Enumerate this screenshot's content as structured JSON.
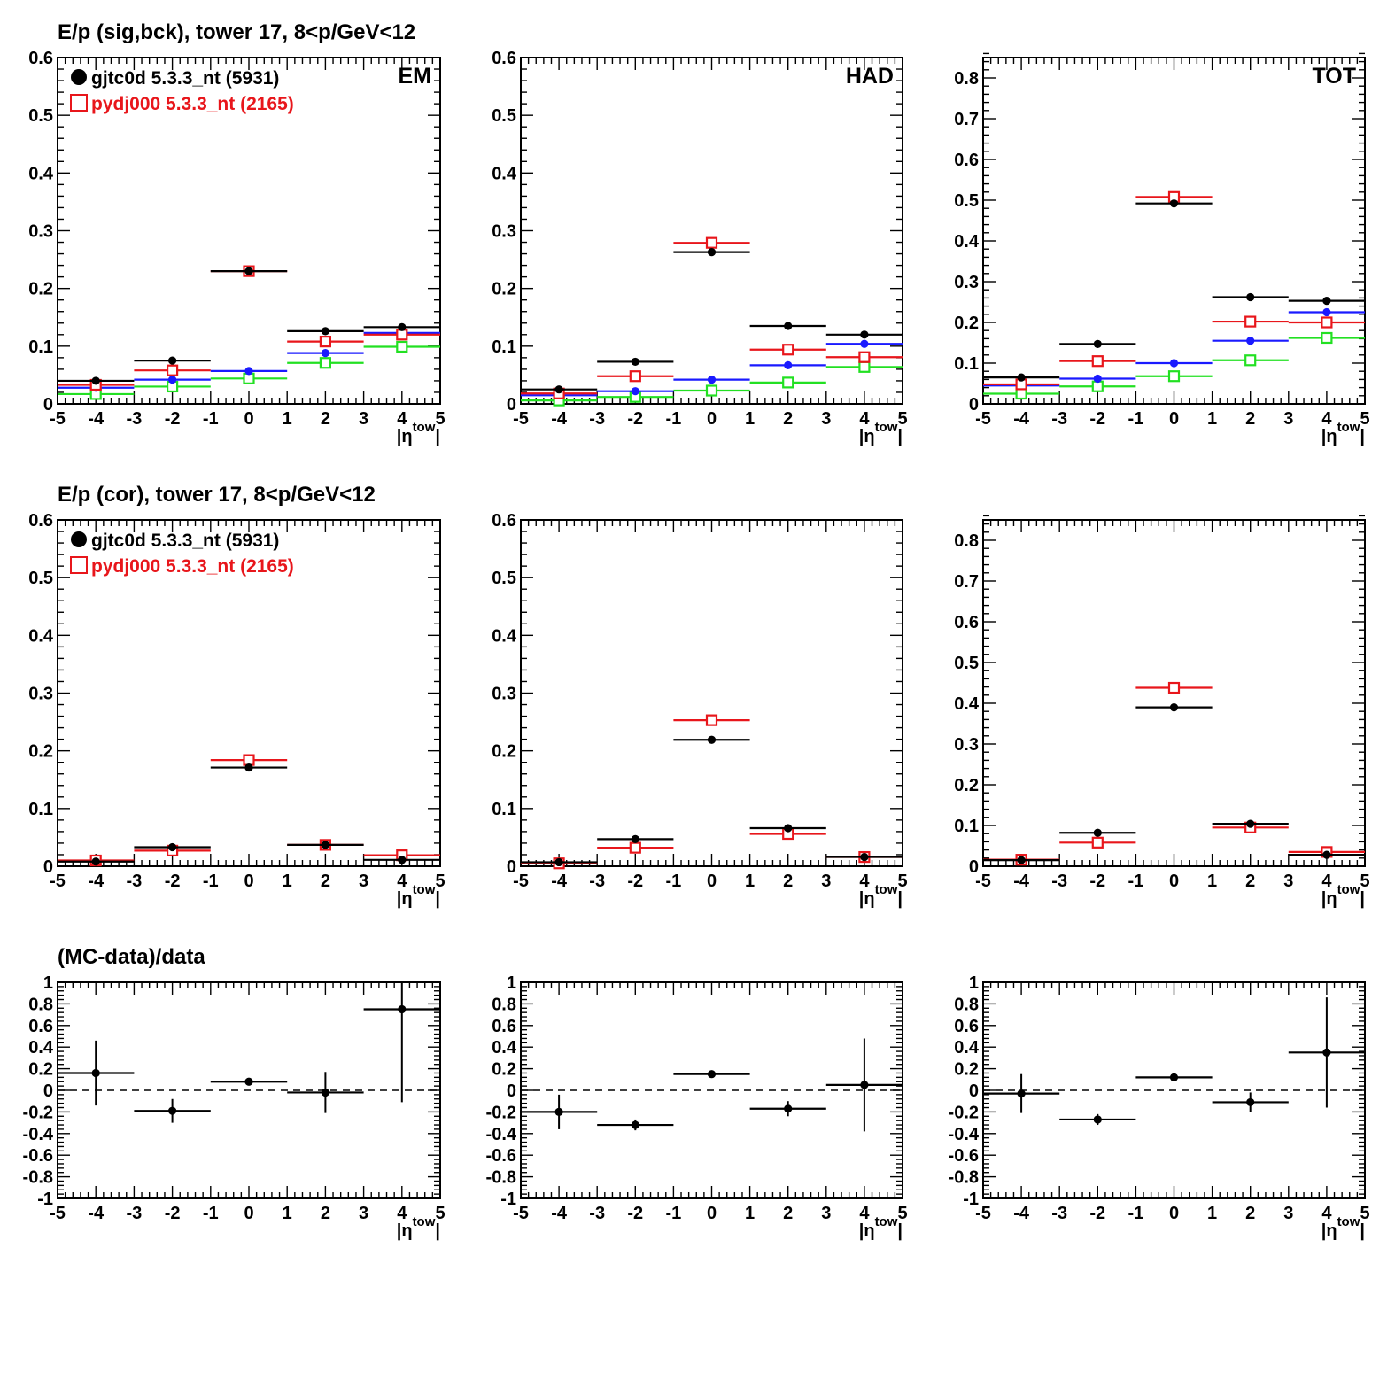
{
  "rows": [
    {
      "title": "E/p (sig,bck), tower 17,  8<p/GeV<12",
      "legend": true
    },
    {
      "title": "E/p (cor), tower 17,  8<p/GeV<12",
      "legend": true
    },
    {
      "title": "(MC-data)/data",
      "legend": false
    }
  ],
  "legend": {
    "data_label": "gjtc0d 5.3.3_nt (5931)",
    "mc_label": "pydj000 5.3.3_nt (2165)"
  },
  "colors": {
    "data": "#000000",
    "mc": "#e8161b",
    "blue": "#1a1aff",
    "green": "#22e022"
  },
  "chart_data": [
    {
      "id": "r1c1",
      "type": "scatter",
      "panel_label": "EM",
      "xlabel": "|η^tow|",
      "xlim": [
        -5,
        5
      ],
      "ylim": [
        0,
        0.6
      ],
      "yticks": [
        0,
        0.1,
        0.2,
        0.3,
        0.4,
        0.5,
        0.6
      ],
      "x": [
        -4,
        -2,
        0,
        2,
        4
      ],
      "series": [
        {
          "name": "gjtc0d 5.3.3_nt (5931)",
          "color": "black",
          "marker": "dot",
          "values": [
            0.04,
            0.075,
            0.23,
            0.126,
            0.133
          ]
        },
        {
          "name": "pydj000 5.3.3_nt (2165)",
          "color": "red",
          "marker": "box",
          "values": [
            0.033,
            0.058,
            0.23,
            0.108,
            0.12
          ]
        },
        {
          "color": "blue",
          "marker": "dot",
          "values": [
            0.028,
            0.042,
            0.057,
            0.088,
            0.123
          ]
        },
        {
          "color": "green",
          "marker": "box",
          "values": [
            0.017,
            0.03,
            0.044,
            0.071,
            0.099
          ]
        }
      ]
    },
    {
      "id": "r1c2",
      "type": "scatter",
      "panel_label": "HAD",
      "xlabel": "|η^tow|",
      "xlim": [
        -5,
        5
      ],
      "ylim": [
        0,
        0.6
      ],
      "yticks": [
        0,
        0.1,
        0.2,
        0.3,
        0.4,
        0.5,
        0.6
      ],
      "x": [
        -4,
        -2,
        0,
        2,
        4
      ],
      "series": [
        {
          "color": "black",
          "marker": "dot",
          "values": [
            0.025,
            0.073,
            0.263,
            0.135,
            0.12
          ]
        },
        {
          "color": "red",
          "marker": "box",
          "values": [
            0.018,
            0.048,
            0.279,
            0.094,
            0.081
          ]
        },
        {
          "color": "blue",
          "marker": "dot",
          "values": [
            0.015,
            0.022,
            0.042,
            0.067,
            0.104
          ]
        },
        {
          "color": "green",
          "marker": "box",
          "values": [
            0.006,
            0.012,
            0.023,
            0.037,
            0.064
          ]
        }
      ]
    },
    {
      "id": "r1c3",
      "type": "scatter",
      "panel_label": "TOT",
      "xlabel": "|η^tow|",
      "xlim": [
        -5,
        5
      ],
      "ylim": [
        0,
        0.85
      ],
      "yticks": [
        0,
        0.1,
        0.2,
        0.3,
        0.4,
        0.5,
        0.6,
        0.7,
        0.8
      ],
      "x": [
        -4,
        -2,
        0,
        2,
        4
      ],
      "series": [
        {
          "color": "black",
          "marker": "dot",
          "values": [
            0.065,
            0.147,
            0.492,
            0.262,
            0.253
          ]
        },
        {
          "color": "red",
          "marker": "box",
          "values": [
            0.048,
            0.105,
            0.508,
            0.202,
            0.2
          ]
        },
        {
          "color": "blue",
          "marker": "dot",
          "values": [
            0.045,
            0.062,
            0.1,
            0.155,
            0.225
          ]
        },
        {
          "color": "green",
          "marker": "box",
          "values": [
            0.025,
            0.043,
            0.068,
            0.107,
            0.162
          ]
        }
      ]
    },
    {
      "id": "r2c1",
      "type": "scatter",
      "panel_label": "",
      "xlabel": "|η^tow|",
      "xlim": [
        -5,
        5
      ],
      "ylim": [
        0,
        0.6
      ],
      "yticks": [
        0,
        0.1,
        0.2,
        0.3,
        0.4,
        0.5,
        0.6
      ],
      "x": [
        -4,
        -2,
        0,
        2,
        4
      ],
      "series": [
        {
          "color": "black",
          "marker": "dot",
          "values": [
            0.008,
            0.033,
            0.171,
            0.037,
            0.011
          ]
        },
        {
          "color": "red",
          "marker": "box",
          "values": [
            0.01,
            0.027,
            0.184,
            0.037,
            0.019
          ]
        }
      ]
    },
    {
      "id": "r2c2",
      "type": "scatter",
      "panel_label": "",
      "xlabel": "|η^tow|",
      "xlim": [
        -5,
        5
      ],
      "ylim": [
        0,
        0.6
      ],
      "yticks": [
        0,
        0.1,
        0.2,
        0.3,
        0.4,
        0.5,
        0.6
      ],
      "x": [
        -4,
        -2,
        0,
        2,
        4
      ],
      "series": [
        {
          "color": "black",
          "marker": "dot",
          "values": [
            0.007,
            0.047,
            0.219,
            0.066,
            0.016
          ]
        },
        {
          "color": "red",
          "marker": "box",
          "values": [
            0.005,
            0.032,
            0.253,
            0.056,
            0.016
          ]
        }
      ]
    },
    {
      "id": "r2c3",
      "type": "scatter",
      "panel_label": "",
      "xlabel": "|η^tow|",
      "xlim": [
        -5,
        5
      ],
      "ylim": [
        0,
        0.85
      ],
      "yticks": [
        0,
        0.1,
        0.2,
        0.3,
        0.4,
        0.5,
        0.6,
        0.7,
        0.8
      ],
      "x": [
        -4,
        -2,
        0,
        2,
        4
      ],
      "series": [
        {
          "color": "black",
          "marker": "dot",
          "values": [
            0.015,
            0.082,
            0.39,
            0.104,
            0.028
          ]
        },
        {
          "color": "red",
          "marker": "box",
          "values": [
            0.016,
            0.058,
            0.438,
            0.095,
            0.035
          ]
        }
      ]
    },
    {
      "id": "r3c1",
      "type": "scatter",
      "panel_label": "",
      "xlabel": "|η^tow|",
      "xlim": [
        -5,
        5
      ],
      "ylim": [
        -1,
        1
      ],
      "yticks": [
        -1,
        -0.8,
        -0.6,
        -0.4,
        -0.2,
        0,
        0.2,
        0.4,
        0.6,
        0.8,
        1
      ],
      "zero_line": true,
      "x": [
        -4,
        -2,
        0,
        2,
        4
      ],
      "series": [
        {
          "color": "black",
          "marker": "dot",
          "values": [
            0.16,
            -0.19,
            0.08,
            -0.02,
            0.75
          ],
          "errors": [
            0.3,
            0.11,
            0.02,
            0.19,
            0.86
          ]
        }
      ]
    },
    {
      "id": "r3c2",
      "type": "scatter",
      "panel_label": "",
      "xlabel": "|η^tow|",
      "xlim": [
        -5,
        5
      ],
      "ylim": [
        -1,
        1
      ],
      "yticks": [
        -1,
        -0.8,
        -0.6,
        -0.4,
        -0.2,
        0,
        0.2,
        0.4,
        0.6,
        0.8,
        1
      ],
      "zero_line": true,
      "x": [
        -4,
        -2,
        0,
        2,
        4
      ],
      "series": [
        {
          "color": "black",
          "marker": "dot",
          "values": [
            -0.2,
            -0.32,
            0.15,
            -0.17,
            0.05
          ],
          "errors": [
            0.16,
            0.05,
            0.03,
            0.07,
            0.43
          ]
        }
      ]
    },
    {
      "id": "r3c3",
      "type": "scatter",
      "panel_label": "",
      "xlabel": "|η^tow|",
      "xlim": [
        -5,
        5
      ],
      "ylim": [
        -1,
        1
      ],
      "yticks": [
        -1,
        -0.8,
        -0.6,
        -0.4,
        -0.2,
        0,
        0.2,
        0.4,
        0.6,
        0.8,
        1
      ],
      "zero_line": true,
      "x": [
        -4,
        -2,
        0,
        2,
        4
      ],
      "series": [
        {
          "color": "black",
          "marker": "dot",
          "values": [
            -0.03,
            -0.27,
            0.12,
            -0.11,
            0.35
          ],
          "errors": [
            0.18,
            0.05,
            0.02,
            0.09,
            0.51
          ]
        }
      ]
    }
  ]
}
